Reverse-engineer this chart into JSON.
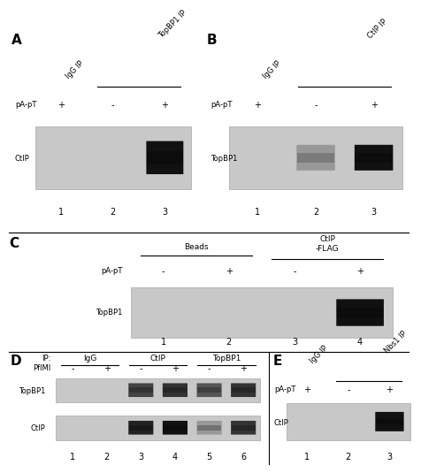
{
  "bg_color": "#ffffff",
  "text_color": "#000000",
  "gel_bg_color": "#c8c8c8",
  "band_dark": "#111111",
  "band_medium": "#777777",
  "band_light": "#aaaaaa",
  "divider_color": "#000000",
  "panels": {
    "A": {
      "label": "A",
      "top_labels": [
        {
          "text": "IgG IP",
          "lanes": [
            0
          ],
          "rotated": true
        },
        {
          "text": "TopBP1 IP",
          "lanes": [
            1,
            2
          ],
          "rotated": true,
          "bracket": true
        }
      ],
      "row_label": "pA-pT",
      "signs": [
        "+",
        "-",
        "+"
      ],
      "blot_label": "CtIP",
      "bands": [
        {
          "lane": 2,
          "color": "#111111",
          "alpha": 1.0
        }
      ],
      "n_lanes": 3
    },
    "B": {
      "label": "B",
      "top_labels": [
        {
          "text": "IgG IP",
          "lanes": [
            0
          ],
          "rotated": true
        },
        {
          "text": "CtIP IP",
          "lanes": [
            1,
            2
          ],
          "rotated": true,
          "bracket": true
        }
      ],
      "row_label": "pA-pT",
      "signs": [
        "+",
        "-",
        "+"
      ],
      "blot_label": "TopBP1",
      "bands": [
        {
          "lane": 1,
          "color": "#888888",
          "alpha": 0.7
        },
        {
          "lane": 2,
          "color": "#111111",
          "alpha": 1.0
        }
      ],
      "n_lanes": 3
    },
    "C": {
      "label": "C",
      "top_labels": [
        {
          "text": "Beads",
          "lanes": [
            0,
            1
          ],
          "rotated": false,
          "bracket": true
        },
        {
          "text": "CtIP\n-FLAG",
          "lanes": [
            2,
            3
          ],
          "rotated": false,
          "bracket": true
        }
      ],
      "row_label": "pA-pT",
      "signs": [
        "-",
        "+",
        "-",
        "+"
      ],
      "blot_label": "TopBP1",
      "bands": [
        {
          "lane": 3,
          "color": "#111111",
          "alpha": 1.0
        }
      ],
      "n_lanes": 4
    },
    "D": {
      "label": "D",
      "ip_labels": [
        {
          "text": "IgG",
          "lanes": [
            0,
            1
          ]
        },
        {
          "text": "CtIP",
          "lanes": [
            2,
            3
          ]
        },
        {
          "text": "TopBP1",
          "lanes": [
            4,
            5
          ]
        }
      ],
      "signs": [
        "-",
        "+",
        "-",
        "+",
        "-",
        "+"
      ],
      "blot_labels": [
        "TopBP1",
        "CtIP"
      ],
      "topbp1_bands": [
        {
          "lane": 2,
          "color": "#444444"
        },
        {
          "lane": 3,
          "color": "#333333"
        },
        {
          "lane": 4,
          "color": "#555555"
        },
        {
          "lane": 5,
          "color": "#333333"
        }
      ],
      "ctip_bands": [
        {
          "lane": 2,
          "color": "#222222"
        },
        {
          "lane": 3,
          "color": "#111111"
        },
        {
          "lane": 4,
          "color": "#999999"
        },
        {
          "lane": 5,
          "color": "#333333"
        }
      ],
      "n_lanes": 6
    },
    "E": {
      "label": "E",
      "top_labels": [
        {
          "text": "IgG IP",
          "lanes": [
            0
          ],
          "rotated": true
        },
        {
          "text": "Nbs1 IP",
          "lanes": [
            1,
            2
          ],
          "rotated": true,
          "bracket": true
        }
      ],
      "row_label": "pA-pT",
      "signs": [
        "+",
        "-",
        "+"
      ],
      "blot_label": "CtIP",
      "bands": [
        {
          "lane": 2,
          "color": "#111111",
          "alpha": 1.0
        }
      ],
      "n_lanes": 3
    }
  }
}
